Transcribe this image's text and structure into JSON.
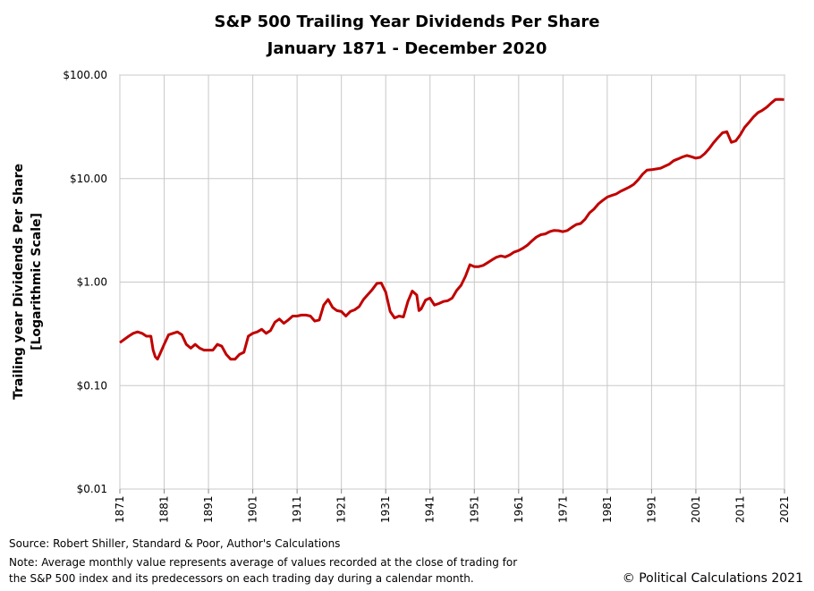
{
  "chart_data": {
    "type": "line",
    "title": [
      "S&P 500 Trailing Year Dividends Per Share",
      "January 1871 - December 2020"
    ],
    "y_label": [
      "Trailing year Dividends Per Share",
      "[Logarithmic Scale]"
    ],
    "source": "Source: Robert Shiller, Standard & Poor, Author's Calculations",
    "note": [
      "Note: Average monthly value represents average of values recorded at the close of trading for",
      "the S&P 500 index and its predecessors on each trading day during a calendar month."
    ],
    "copyright": "© Political Calculations 2021",
    "color": "#c00000",
    "log_y": true,
    "grid": true,
    "xlim": [
      1871,
      2021
    ],
    "xticks": [
      1871,
      1881,
      1891,
      1901,
      1911,
      1921,
      1931,
      1941,
      1951,
      1961,
      1971,
      1981,
      1991,
      2001,
      2011,
      2021
    ],
    "ylim": [
      0.01,
      100
    ],
    "yticks": [
      {
        "value": 0.01,
        "label": "$0.01"
      },
      {
        "value": 0.1,
        "label": "$0.10"
      },
      {
        "value": 1,
        "label": "$1.00"
      },
      {
        "value": 10,
        "label": "$10.00"
      },
      {
        "value": 100,
        "label": "$100.00"
      }
    ],
    "x": [
      1871,
      1873,
      1874,
      1875,
      1876,
      1877,
      1878,
      1878.5,
      1879,
      1879.5,
      1880,
      1881,
      1882,
      1883,
      1884,
      1885,
      1886,
      1887,
      1888,
      1889,
      1890,
      1891,
      1892,
      1893,
      1894,
      1895,
      1896,
      1897,
      1898,
      1899,
      1900,
      1901,
      1902,
      1903,
      1904,
      1905,
      1906,
      1907,
      1908,
      1909,
      1910,
      1911,
      1912,
      1913,
      1914,
      1915,
      1916,
      1917,
      1918,
      1919,
      1920,
      1921,
      1922,
      1923,
      1924,
      1925,
      1926,
      1927,
      1928,
      1929,
      1930,
      1931,
      1932,
      1933,
      1934,
      1935,
      1936,
      1937,
      1938,
      1938.5,
      1939,
      1940,
      1941,
      1942,
      1943,
      1944,
      1945,
      1946,
      1947,
      1948,
      1949,
      1950,
      1951,
      1952,
      1953,
      1954,
      1955,
      1956,
      1957,
      1958,
      1959,
      1960,
      1961,
      1962,
      1963,
      1964,
      1965,
      1966,
      1967,
      1968,
      1969,
      1970,
      1971,
      1972,
      1973,
      1974,
      1975,
      1976,
      1977,
      1978,
      1979,
      1980,
      1981,
      1982,
      1983,
      1984,
      1985,
      1986,
      1987,
      1988,
      1989,
      1990,
      1991,
      1992,
      1993,
      1994,
      1995,
      1996,
      1997,
      1998,
      1999,
      2000,
      2001,
      2002,
      2003,
      2004,
      2005,
      2006,
      2007,
      2008,
      2009,
      2010,
      2011,
      2012,
      2013,
      2014,
      2015,
      2016,
      2017,
      2018,
      2019,
      2020,
      2020.9
    ],
    "values": [
      0.26,
      0.3,
      0.32,
      0.33,
      0.32,
      0.3,
      0.3,
      0.22,
      0.19,
      0.18,
      0.2,
      0.25,
      0.31,
      0.32,
      0.33,
      0.31,
      0.25,
      0.23,
      0.25,
      0.23,
      0.22,
      0.22,
      0.22,
      0.25,
      0.24,
      0.2,
      0.18,
      0.18,
      0.2,
      0.21,
      0.3,
      0.32,
      0.33,
      0.35,
      0.32,
      0.34,
      0.41,
      0.44,
      0.4,
      0.43,
      0.47,
      0.47,
      0.48,
      0.48,
      0.47,
      0.42,
      0.43,
      0.6,
      0.68,
      0.57,
      0.53,
      0.52,
      0.47,
      0.52,
      0.54,
      0.58,
      0.68,
      0.76,
      0.85,
      0.97,
      0.98,
      0.8,
      0.52,
      0.45,
      0.47,
      0.46,
      0.65,
      0.82,
      0.75,
      0.53,
      0.55,
      0.67,
      0.7,
      0.6,
      0.62,
      0.65,
      0.66,
      0.7,
      0.83,
      0.93,
      1.14,
      1.47,
      1.41,
      1.41,
      1.45,
      1.54,
      1.64,
      1.74,
      1.79,
      1.75,
      1.83,
      1.95,
      2.02,
      2.13,
      2.28,
      2.5,
      2.72,
      2.87,
      2.92,
      3.07,
      3.16,
      3.14,
      3.07,
      3.15,
      3.38,
      3.6,
      3.68,
      4.05,
      4.67,
      5.07,
      5.7,
      6.16,
      6.63,
      6.87,
      7.09,
      7.53,
      7.9,
      8.28,
      8.81,
      9.73,
      11.05,
      12.09,
      12.2,
      12.38,
      12.58,
      13.18,
      13.79,
      14.9,
      15.5,
      16.2,
      16.71,
      16.27,
      15.74,
      16.08,
      17.39,
      19.44,
      22.22,
      24.88,
      27.73,
      28.39,
      22.41,
      23.12,
      26.43,
      31.25,
      34.99,
      39.44,
      43.39,
      45.7,
      48.93,
      53.61,
      58.24,
      58.28,
      58.0
    ]
  }
}
